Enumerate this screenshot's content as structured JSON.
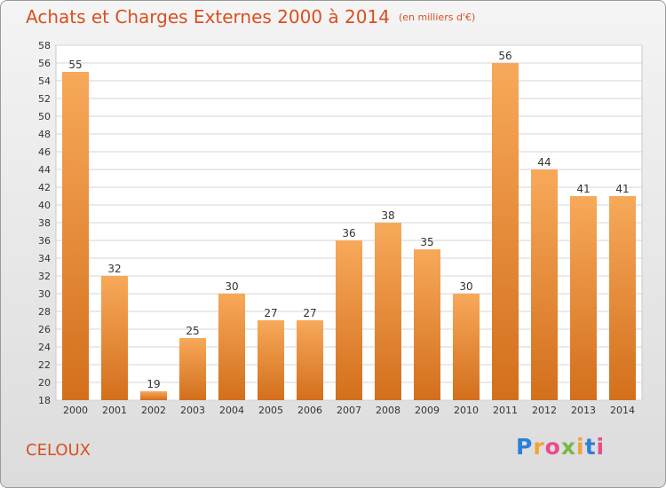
{
  "title": "Achats et Charges Externes 2000 à 2014",
  "unit": "(en milliers d'€)",
  "commune": "CELOUX",
  "logo": {
    "letters": [
      "P",
      "r",
      "o",
      "x",
      "i",
      "t",
      "i"
    ],
    "colors": [
      "#2e7fd6",
      "#f2a33a",
      "#e94b8a",
      "#7ab648",
      "#f2a33a",
      "#2e7fd6",
      "#e94b8a"
    ]
  },
  "colors": {
    "title": "#d8501f",
    "bar_top": "#f7a95a",
    "bar_bottom": "#d36f1c",
    "grid": "#d4d4d4"
  },
  "chart_data": {
    "type": "bar",
    "categories": [
      "2000",
      "2001",
      "2002",
      "2003",
      "2004",
      "2005",
      "2006",
      "2007",
      "2008",
      "2009",
      "2010",
      "2011",
      "2012",
      "2013",
      "2014"
    ],
    "values": [
      55,
      32,
      19,
      25,
      30,
      27,
      27,
      36,
      38,
      35,
      30,
      56,
      44,
      41,
      41
    ],
    "ylim": [
      18,
      58
    ],
    "yticks": [
      18,
      20,
      22,
      24,
      26,
      28,
      30,
      32,
      34,
      36,
      38,
      40,
      42,
      44,
      46,
      48,
      50,
      52,
      54,
      56,
      58
    ],
    "grid": true,
    "xlabel": "",
    "ylabel": ""
  }
}
